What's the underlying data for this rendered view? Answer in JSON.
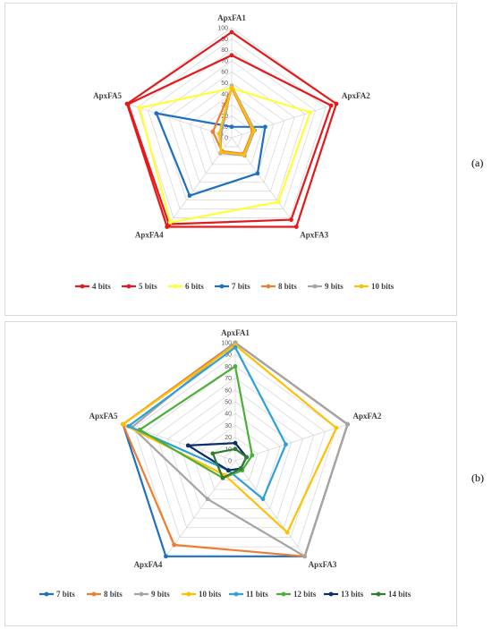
{
  "panel_labels": {
    "a": "(a)",
    "b": "(b)"
  },
  "chart_data": [
    {
      "id": "a",
      "type": "radar",
      "axes": [
        "ApxFA1",
        "ApxFA2",
        "ApxFA3",
        "ApxFA4",
        "ApxFA5"
      ],
      "ticks": [
        0,
        10,
        20,
        30,
        40,
        50,
        60,
        70,
        80,
        90,
        100
      ],
      "ylim": [
        0,
        100
      ],
      "legend_position": "bottom",
      "series": [
        {
          "name": "4 bits",
          "color": "#e31a1c",
          "values": [
            96,
            100,
            100,
            100,
            100
          ]
        },
        {
          "name": "5 bits",
          "color": "#e31a1c",
          "values": [
            75,
            95,
            92,
            97,
            99
          ]
        },
        {
          "name": "6 bits",
          "color": "#ffff33",
          "values": [
            45,
            75,
            72,
            95,
            88
          ]
        },
        {
          "name": "7 bits",
          "color": "#1f6fc0",
          "values": [
            10,
            32,
            40,
            65,
            72
          ]
        },
        {
          "name": "8 bits",
          "color": "#ed7d31",
          "values": [
            45,
            20,
            18,
            15,
            18
          ]
        },
        {
          "name": "9 bits",
          "color": "#a5a5a5",
          "values": [
            47,
            22,
            20,
            17,
            10
          ]
        },
        {
          "name": "10 bits",
          "color": "#ffc000",
          "values": [
            46,
            21,
            19,
            16,
            12
          ]
        }
      ]
    },
    {
      "id": "b",
      "type": "radar",
      "axes": [
        "ApxFA1",
        "ApxFA2",
        "ApxFA3",
        "ApxFA4",
        "ApxFA5"
      ],
      "ticks": [
        0,
        10,
        20,
        30,
        40,
        50,
        60,
        70,
        80,
        90,
        100
      ],
      "ylim": [
        0,
        100
      ],
      "legend_position": "bottom",
      "series": [
        {
          "name": "7 bits",
          "color": "#1f6fc0",
          "values": [
            100,
            100,
            100,
            100,
            100
          ]
        },
        {
          "name": "8 bits",
          "color": "#ed7d31",
          "values": [
            100,
            100,
            100,
            88,
            100
          ]
        },
        {
          "name": "9 bits",
          "color": "#a5a5a5",
          "values": [
            100,
            100,
            100,
            40,
            92
          ]
        },
        {
          "name": "10 bits",
          "color": "#ffc000",
          "values": [
            98,
            90,
            75,
            15,
            100
          ]
        },
        {
          "name": "11 bits",
          "color": "#2ea0d8",
          "values": [
            96,
            45,
            40,
            10,
            95
          ]
        },
        {
          "name": "12 bits",
          "color": "#4caf3a",
          "values": [
            80,
            15,
            10,
            18,
            85
          ]
        },
        {
          "name": "13 bits",
          "color": "#0b2e6b",
          "values": [
            15,
            10,
            8,
            10,
            42
          ]
        },
        {
          "name": "14 bits",
          "color": "#2e7d32",
          "values": [
            10,
            10,
            8,
            18,
            20
          ]
        }
      ]
    }
  ]
}
